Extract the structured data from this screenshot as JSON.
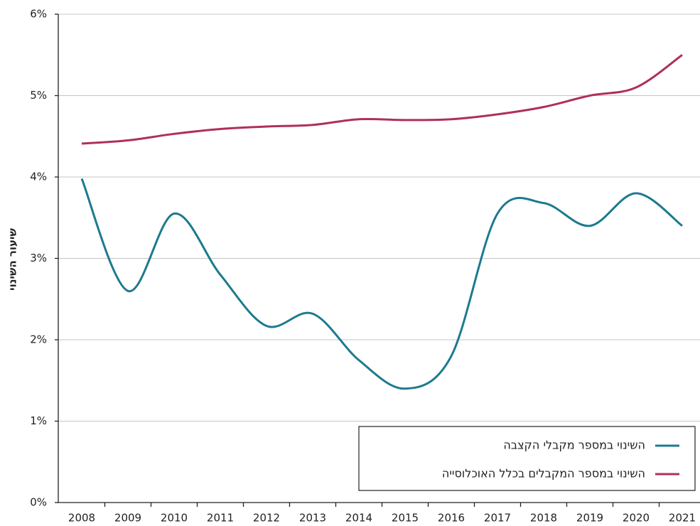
{
  "chart_data": {
    "type": "line",
    "y_label": "שיעור השינוי",
    "categories": [
      "2008",
      "2009",
      "2010",
      "2011",
      "2012",
      "2013",
      "2014",
      "2015",
      "2016",
      "2017",
      "2018",
      "2019",
      "2020",
      "2021"
    ],
    "series": [
      {
        "name": "השינוי במספר מקבלי הקצבה",
        "color": "#1d7a8e",
        "values": [
          3.98,
          2.6,
          3.55,
          2.8,
          2.17,
          2.32,
          1.75,
          1.4,
          1.8,
          3.55,
          3.68,
          3.4,
          3.8,
          3.4
        ]
      },
      {
        "name": "השינוי במספר המקבלים בכלל האוכלוסייה",
        "color": "#b03057",
        "values": [
          4.41,
          4.45,
          4.53,
          4.59,
          4.62,
          4.64,
          4.71,
          4.7,
          4.71,
          4.77,
          4.86,
          5.0,
          5.1,
          5.5
        ]
      }
    ],
    "ylim": [
      0,
      6
    ],
    "yticks": [
      {
        "value": 0,
        "label": "0%"
      },
      {
        "value": 1,
        "label": "1%"
      },
      {
        "value": 2,
        "label": "2%"
      },
      {
        "value": 3,
        "label": "3%"
      },
      {
        "value": 4,
        "label": "4%"
      },
      {
        "value": 5,
        "label": "5%"
      },
      {
        "value": 6,
        "label": "6%"
      }
    ],
    "grid": true,
    "legend": "lower right"
  }
}
